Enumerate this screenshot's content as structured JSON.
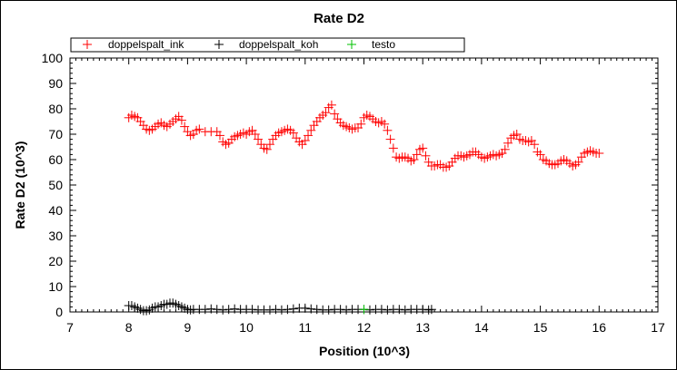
{
  "chart_data": {
    "type": "scatter",
    "title": "Rate D2",
    "xlabel": "Position (10^3)",
    "ylabel": "Rate D2 (10^3)",
    "xlim": [
      7,
      17
    ],
    "ylim": [
      0,
      100
    ],
    "x_ticks": [
      "7",
      "8",
      "9",
      "10",
      "11",
      "12",
      "13",
      "14",
      "15",
      "16",
      "17"
    ],
    "y_ticks": [
      "0",
      "10",
      "20",
      "30",
      "40",
      "50",
      "60",
      "70",
      "80",
      "90",
      "100"
    ],
    "grid": false,
    "legend_position": "top",
    "marker": "+",
    "series": [
      {
        "name": "doppelspalt_ink",
        "color": "#ff0000",
        "points": [
          [
            8.0,
            76.5
          ],
          [
            8.05,
            77.5
          ],
          [
            8.1,
            77.0
          ],
          [
            8.15,
            76.5
          ],
          [
            8.2,
            75.0
          ],
          [
            8.25,
            73.5
          ],
          [
            8.3,
            72.0
          ],
          [
            8.35,
            71.5
          ],
          [
            8.4,
            72.0
          ],
          [
            8.45,
            73.0
          ],
          [
            8.5,
            74.0
          ],
          [
            8.55,
            74.5
          ],
          [
            8.6,
            73.5
          ],
          [
            8.65,
            73.0
          ],
          [
            8.7,
            74.0
          ],
          [
            8.75,
            75.0
          ],
          [
            8.8,
            76.0
          ],
          [
            8.85,
            77.0
          ],
          [
            8.9,
            75.5
          ],
          [
            8.95,
            73.0
          ],
          [
            9.0,
            71.0
          ],
          [
            9.05,
            69.5
          ],
          [
            9.1,
            70.0
          ],
          [
            9.15,
            71.5
          ],
          [
            9.2,
            72.0
          ],
          [
            9.3,
            71.0
          ],
          [
            9.4,
            71.0
          ],
          [
            9.5,
            71.0
          ],
          [
            9.55,
            69.5
          ],
          [
            9.6,
            67.0
          ],
          [
            9.65,
            66.0
          ],
          [
            9.7,
            66.5
          ],
          [
            9.75,
            68.0
          ],
          [
            9.8,
            69.0
          ],
          [
            9.85,
            69.5
          ],
          [
            9.9,
            70.0
          ],
          [
            9.95,
            70.5
          ],
          [
            10.0,
            70.0
          ],
          [
            10.05,
            71.0
          ],
          [
            10.1,
            71.5
          ],
          [
            10.15,
            70.0
          ],
          [
            10.2,
            68.0
          ],
          [
            10.25,
            66.0
          ],
          [
            10.3,
            64.5
          ],
          [
            10.35,
            64.0
          ],
          [
            10.4,
            66.0
          ],
          [
            10.45,
            68.0
          ],
          [
            10.5,
            69.5
          ],
          [
            10.55,
            70.5
          ],
          [
            10.6,
            71.0
          ],
          [
            10.65,
            71.5
          ],
          [
            10.7,
            72.0
          ],
          [
            10.75,
            71.5
          ],
          [
            10.8,
            70.5
          ],
          [
            10.85,
            68.5
          ],
          [
            10.9,
            67.0
          ],
          [
            10.95,
            66.0
          ],
          [
            11.0,
            67.5
          ],
          [
            11.05,
            69.5
          ],
          [
            11.1,
            71.5
          ],
          [
            11.15,
            73.5
          ],
          [
            11.2,
            75.0
          ],
          [
            11.25,
            76.5
          ],
          [
            11.3,
            77.5
          ],
          [
            11.35,
            78.5
          ],
          [
            11.4,
            80.5
          ],
          [
            11.45,
            81.5
          ],
          [
            11.5,
            78.0
          ],
          [
            11.55,
            76.0
          ],
          [
            11.6,
            74.5
          ],
          [
            11.65,
            73.5
          ],
          [
            11.7,
            73.0
          ],
          [
            11.75,
            72.5
          ],
          [
            11.8,
            72.0
          ],
          [
            11.85,
            72.5
          ],
          [
            11.9,
            72.5
          ],
          [
            11.95,
            74.0
          ],
          [
            12.0,
            76.5
          ],
          [
            12.05,
            77.5
          ],
          [
            12.1,
            77.0
          ],
          [
            12.15,
            76.0
          ],
          [
            12.2,
            75.0
          ],
          [
            12.25,
            74.5
          ],
          [
            12.3,
            75.0
          ],
          [
            12.35,
            74.0
          ],
          [
            12.4,
            71.5
          ],
          [
            12.45,
            68.0
          ],
          [
            12.5,
            64.5
          ],
          [
            12.55,
            61.0
          ],
          [
            12.6,
            60.5
          ],
          [
            12.65,
            61.0
          ],
          [
            12.7,
            61.0
          ],
          [
            12.75,
            60.5
          ],
          [
            12.8,
            59.5
          ],
          [
            12.85,
            60.0
          ],
          [
            12.9,
            62.0
          ],
          [
            12.95,
            64.0
          ],
          [
            13.0,
            64.5
          ],
          [
            13.05,
            61.5
          ],
          [
            13.1,
            59.0
          ],
          [
            13.15,
            57.5
          ],
          [
            13.2,
            57.5
          ],
          [
            13.25,
            58.0
          ],
          [
            13.3,
            58.0
          ],
          [
            13.35,
            57.0
          ],
          [
            13.4,
            57.0
          ],
          [
            13.45,
            57.5
          ],
          [
            13.5,
            59.0
          ],
          [
            13.55,
            60.5
          ],
          [
            13.6,
            61.5
          ],
          [
            13.65,
            61.5
          ],
          [
            13.7,
            61.0
          ],
          [
            13.75,
            61.5
          ],
          [
            13.8,
            62.0
          ],
          [
            13.85,
            63.0
          ],
          [
            13.9,
            63.0
          ],
          [
            13.95,
            62.0
          ],
          [
            14.0,
            61.0
          ],
          [
            14.05,
            60.5
          ],
          [
            14.1,
            61.0
          ],
          [
            14.15,
            61.5
          ],
          [
            14.2,
            62.0
          ],
          [
            14.25,
            61.5
          ],
          [
            14.3,
            62.0
          ],
          [
            14.35,
            62.5
          ],
          [
            14.4,
            64.0
          ],
          [
            14.45,
            66.5
          ],
          [
            14.5,
            68.5
          ],
          [
            14.55,
            69.5
          ],
          [
            14.6,
            70.0
          ],
          [
            14.65,
            68.0
          ],
          [
            14.7,
            67.5
          ],
          [
            14.75,
            67.5
          ],
          [
            14.8,
            67.0
          ],
          [
            14.85,
            67.5
          ],
          [
            14.9,
            66.0
          ],
          [
            14.95,
            63.0
          ],
          [
            15.0,
            62.0
          ],
          [
            15.05,
            60.0
          ],
          [
            15.1,
            59.5
          ],
          [
            15.15,
            58.5
          ],
          [
            15.2,
            58.0
          ],
          [
            15.25,
            58.0
          ],
          [
            15.3,
            58.5
          ],
          [
            15.35,
            59.5
          ],
          [
            15.4,
            60.0
          ],
          [
            15.45,
            59.5
          ],
          [
            15.5,
            58.5
          ],
          [
            15.55,
            57.5
          ],
          [
            15.6,
            58.0
          ],
          [
            15.65,
            59.0
          ],
          [
            15.7,
            61.0
          ],
          [
            15.75,
            62.5
          ],
          [
            15.8,
            63.0
          ],
          [
            15.85,
            63.5
          ],
          [
            15.9,
            63.0
          ],
          [
            15.95,
            62.5
          ],
          [
            16.0,
            62.5
          ]
        ]
      },
      {
        "name": "doppelspalt_koh",
        "color": "#000000",
        "points": [
          [
            8.0,
            2.5
          ],
          [
            8.05,
            2.5
          ],
          [
            8.1,
            2.0
          ],
          [
            8.15,
            1.5
          ],
          [
            8.2,
            1.0
          ],
          [
            8.25,
            0.5
          ],
          [
            8.3,
            0.5
          ],
          [
            8.35,
            0.8
          ],
          [
            8.4,
            1.5
          ],
          [
            8.45,
            2.0
          ],
          [
            8.5,
            2.0
          ],
          [
            8.55,
            2.5
          ],
          [
            8.6,
            3.0
          ],
          [
            8.65,
            3.0
          ],
          [
            8.7,
            3.5
          ],
          [
            8.75,
            3.5
          ],
          [
            8.8,
            3.0
          ],
          [
            8.85,
            2.5
          ],
          [
            8.9,
            2.0
          ],
          [
            8.95,
            1.5
          ],
          [
            9.0,
            1.0
          ],
          [
            9.05,
            0.8
          ],
          [
            9.1,
            1.0
          ],
          [
            9.2,
            1.0
          ],
          [
            9.3,
            1.0
          ],
          [
            9.4,
            1.2
          ],
          [
            9.5,
            1.0
          ],
          [
            9.6,
            0.8
          ],
          [
            9.7,
            1.0
          ],
          [
            9.8,
            1.2
          ],
          [
            9.9,
            1.0
          ],
          [
            10.0,
            1.0
          ],
          [
            10.1,
            1.0
          ],
          [
            10.2,
            0.8
          ],
          [
            10.3,
            0.8
          ],
          [
            10.4,
            0.8
          ],
          [
            10.5,
            1.0
          ],
          [
            10.6,
            0.8
          ],
          [
            10.7,
            1.0
          ],
          [
            10.8,
            1.2
          ],
          [
            10.9,
            1.5
          ],
          [
            11.0,
            1.5
          ],
          [
            11.1,
            1.2
          ],
          [
            11.2,
            1.0
          ],
          [
            11.3,
            0.8
          ],
          [
            11.4,
            0.8
          ],
          [
            11.5,
            1.0
          ],
          [
            11.6,
            1.0
          ],
          [
            11.7,
            0.8
          ],
          [
            11.8,
            1.0
          ],
          [
            11.9,
            1.0
          ],
          [
            12.0,
            1.0
          ],
          [
            12.1,
            0.8
          ],
          [
            12.2,
            1.0
          ],
          [
            12.3,
            1.0
          ],
          [
            12.4,
            0.8
          ],
          [
            12.5,
            1.0
          ],
          [
            12.6,
            1.0
          ],
          [
            12.7,
            0.8
          ],
          [
            12.8,
            1.0
          ],
          [
            12.9,
            1.0
          ],
          [
            13.0,
            1.0
          ],
          [
            13.1,
            0.8
          ],
          [
            13.15,
            1.0
          ]
        ]
      },
      {
        "name": "testo",
        "color": "#00c000",
        "points": [
          [
            12.0,
            1.0
          ]
        ]
      }
    ]
  }
}
